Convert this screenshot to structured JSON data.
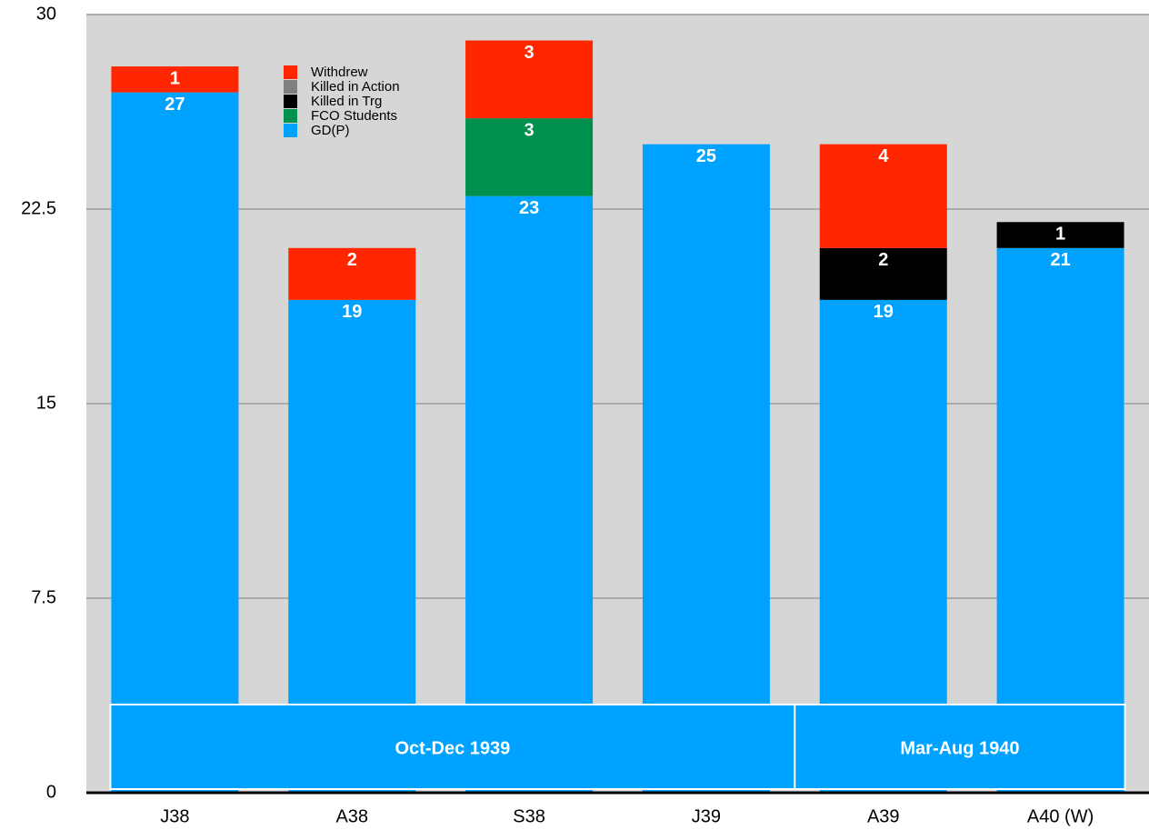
{
  "chart_data": {
    "type": "stacked_bar",
    "categories": [
      "J38",
      "A38",
      "S38",
      "J39",
      "A39",
      "A40 (W)"
    ],
    "series": [
      {
        "name": "GD(P)",
        "color": "#00a2ff",
        "values": [
          27,
          19,
          23,
          25,
          19,
          21
        ]
      },
      {
        "name": "FCO Students",
        "color": "#00904e",
        "values": [
          0,
          0,
          3,
          0,
          0,
          0
        ]
      },
      {
        "name": "Killed in Trg",
        "color": "#000000",
        "values": [
          0,
          0,
          0,
          0,
          2,
          1
        ]
      },
      {
        "name": "Killed in Action",
        "color": "#7f7f7f",
        "values": [
          0,
          0,
          0,
          0,
          0,
          0
        ]
      },
      {
        "name": "Withdrew",
        "color": "#ff2600",
        "values": [
          1,
          2,
          3,
          0,
          4,
          0
        ]
      }
    ],
    "groups": [
      {
        "label": "Oct-Dec 1939",
        "categories": [
          "J38",
          "A38",
          "S38",
          "J39"
        ]
      },
      {
        "label": "Mar-Aug 1940",
        "categories": [
          "A39",
          "A40 (W)"
        ]
      }
    ],
    "ylim": [
      0,
      30
    ],
    "yticks": [
      0,
      7.5,
      15,
      22.5,
      30
    ],
    "grid": true,
    "legend": "top-left"
  }
}
